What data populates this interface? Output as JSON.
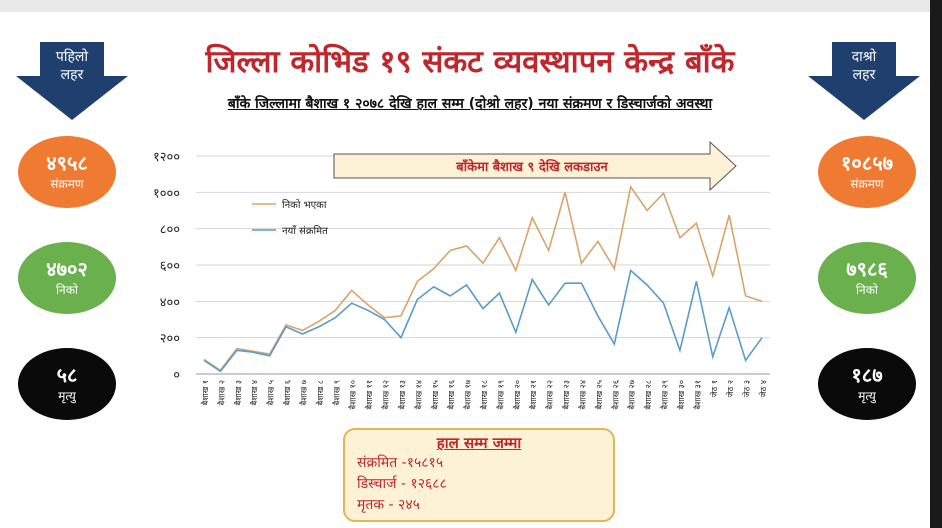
{
  "title": "जिल्ला कोभिड १९ संकट व्यवस्थापन केन्द्र बाँके",
  "subtitle": "बाँके जिल्लामा बैशाख १ २०७८ देखि हाल सम्म (दोश्रो लहर) नया संक्रमण र डिस्चार्जको अवस्था",
  "wave1": {
    "label_line1": "पहिलो",
    "label_line2": "लहर",
    "infected": "४९५८",
    "infected_label": "संक्रमण",
    "recovered": "४७०२",
    "recovered_label": "निको",
    "deaths": "५८",
    "deaths_label": "मृत्यु"
  },
  "wave2": {
    "label_line1": "दाश्रो",
    "label_line2": "लहर",
    "infected": "१०८५७",
    "infected_label": "संक्रमण",
    "recovered": "७९८६",
    "recovered_label": "निको",
    "deaths": "१८७",
    "deaths_label": "मृत्यु"
  },
  "totals": {
    "heading": "हाल सम्म जम्मा",
    "infected": "संक्रमित -१५८१५",
    "discharged": "डिस्चार्ज  - १२६८८",
    "deaths": "मृतक  - २४५"
  },
  "colors": {
    "title_red": "#c0272d",
    "arrow_blue": "#1f3f6e",
    "orange": "#ef7b33",
    "green": "#6ab04c",
    "recovered_line": "#d9a46a",
    "new_line": "#5b9bc8"
  },
  "chart_data": {
    "type": "line",
    "title": "",
    "xlabel": "",
    "ylabel": "",
    "ylim": [
      0,
      1200
    ],
    "yticks": [
      0,
      200,
      400,
      600,
      800,
      1000,
      1200
    ],
    "ytick_labels": [
      "०",
      "२००",
      "४००",
      "६००",
      "८००",
      "१०००",
      "१२००"
    ],
    "grid": true,
    "legend_position": "top-left",
    "annotation": "बाँकेमा बैशाख ९ देखि लकडाउन",
    "categories": [
      "बैशाख १",
      "बैशाख २",
      "बैशाख ३",
      "बैशाख ४",
      "बैशाख ५",
      "बैशाख ६",
      "बैशाख ७",
      "बैशाख ८",
      "बैशाख ९",
      "बैशाख १०",
      "बैशाख ११",
      "बैशाख १२",
      "बैशाख १३",
      "बैशाख १४",
      "बैशाख १५",
      "बैशाख १६",
      "बैशाख १७",
      "बैशाख १८",
      "बैशाख १९",
      "बैशाख २०",
      "बैशाख २१",
      "बैशाख २२",
      "बैशाख २३",
      "बैशाख २४",
      "बैशाख २५",
      "बैशाख २६",
      "बैशाख २७",
      "बैशाख २८",
      "बैशाख २९",
      "बैशाख ३०",
      "बैशाख ३१",
      "जेठ १",
      "जेठ २",
      "जेठ ३",
      "जेठ ४"
    ],
    "series": [
      {
        "name": "निको भएका",
        "color": "#d9a46a",
        "values": [
          80,
          20,
          140,
          125,
          110,
          270,
          240,
          290,
          350,
          460,
          380,
          310,
          320,
          510,
          580,
          680,
          705,
          610,
          750,
          570,
          860,
          680,
          1000,
          610,
          730,
          580,
          1030,
          900,
          995,
          750,
          830,
          540,
          875,
          430,
          400
        ]
      },
      {
        "name": "नयाँ संक्रमित",
        "color": "#5b9bc8",
        "values": [
          75,
          15,
          130,
          120,
          100,
          260,
          220,
          260,
          310,
          390,
          350,
          300,
          200,
          410,
          480,
          430,
          490,
          360,
          445,
          230,
          520,
          380,
          500,
          500,
          320,
          165,
          570,
          490,
          390,
          130,
          510,
          95,
          365,
          75,
          200
        ]
      }
    ]
  }
}
